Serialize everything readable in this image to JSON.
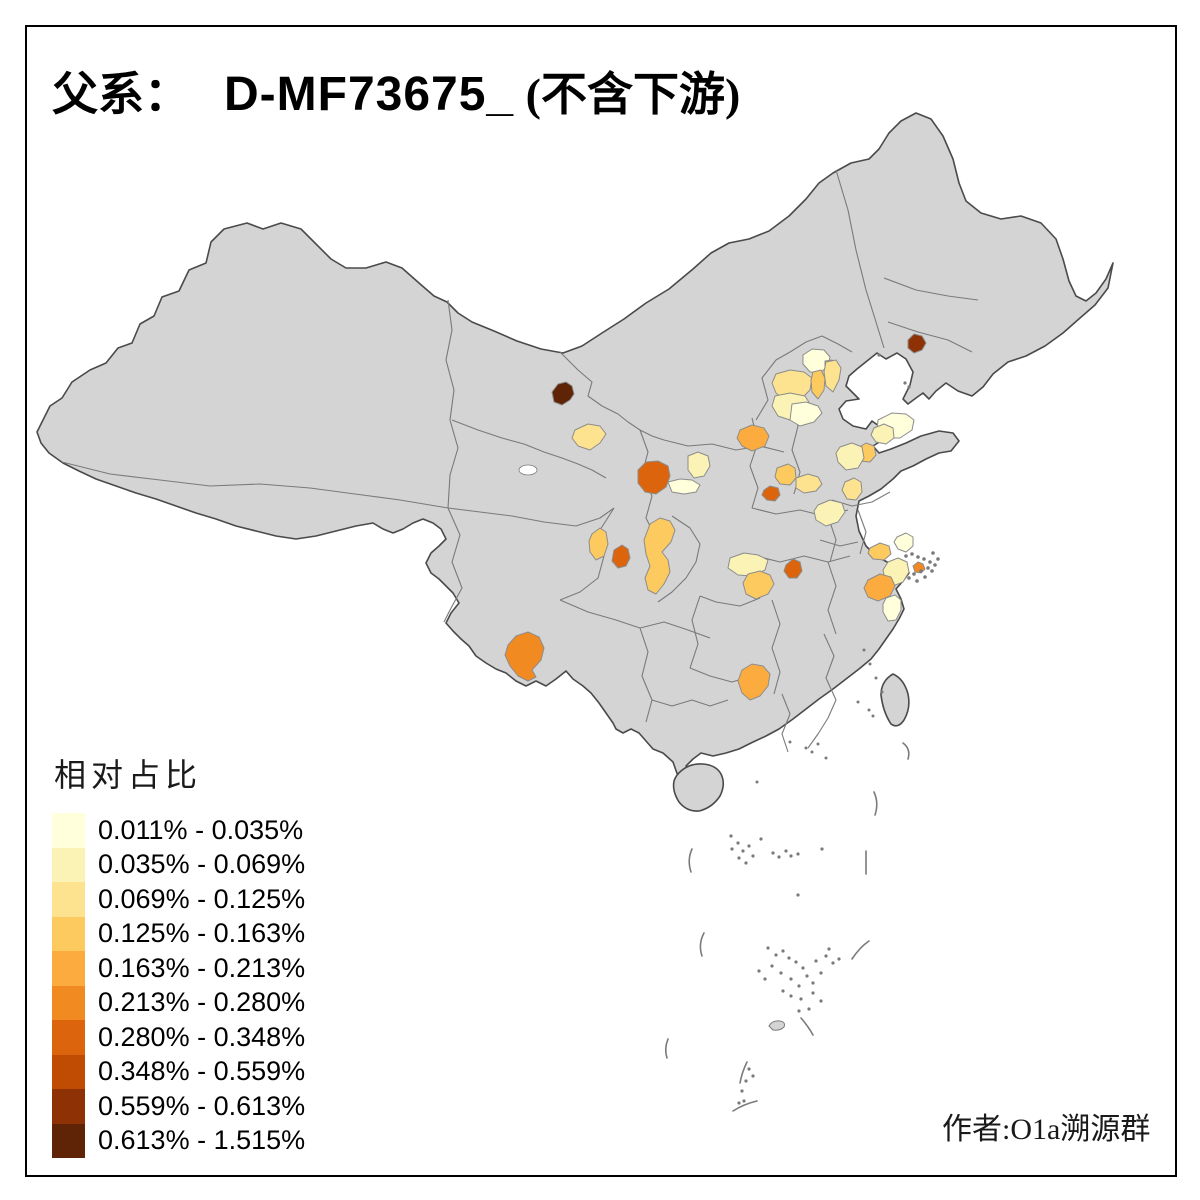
{
  "title": {
    "prefix": "父系：",
    "haplogroup": "D-MF73675_",
    "suffix": " (不含下游)"
  },
  "credit": "作者:O1a溯源群",
  "legend": {
    "title": "相对占比",
    "classes": [
      {
        "label": "0.011% - 0.035%",
        "color": "#FFFFDB"
      },
      {
        "label": "0.035% - 0.069%",
        "color": "#FBF2B6"
      },
      {
        "label": "0.069% - 0.125%",
        "color": "#FDE28F"
      },
      {
        "label": "0.125% - 0.163%",
        "color": "#FDCA5F"
      },
      {
        "label": "0.163% - 0.213%",
        "color": "#FCAC3E"
      },
      {
        "label": "0.213% - 0.280%",
        "color": "#F28A22"
      },
      {
        "label": "0.280% - 0.348%",
        "color": "#DC640D"
      },
      {
        "label": "0.348% - 0.559%",
        "color": "#C04B03"
      },
      {
        "label": "0.559% - 0.613%",
        "color": "#8E3104"
      },
      {
        "label": "0.613% - 1.515%",
        "color": "#5F2406"
      }
    ]
  },
  "map": {
    "colors": {
      "land": "#D4D4D4",
      "outline": "#4A4A4A",
      "province_border": "#7A7A7A",
      "region_border": "#8C8C8C",
      "sea": "#FFFFFF"
    },
    "region_classes": {
      "gansu_hexi": 10,
      "liaoning_c": 9,
      "tianshui": 7,
      "chengdu": 7,
      "wuhan": 7,
      "yuncheng": 7,
      "yunnan_dali": 6,
      "zhoushan": 6,
      "shaanxi_n": 5,
      "hunan_s": 5,
      "jinhua": 5,
      "nanchong": 4,
      "mianyang": 4,
      "hubei_sw": 4,
      "shanxi_se": 4,
      "beijing_e": 4,
      "langfang": 4,
      "qingdao": 4,
      "huzhou": 4,
      "lanzhou": 3,
      "hebei_w": 3,
      "tianjin": 3,
      "anyang": 3,
      "linyi": 3,
      "hebei_s": 2,
      "jinan": 2,
      "weifang": 2,
      "xuzhou": 2,
      "xiangyang": 2,
      "pingliang": 2,
      "hangzhou": 2,
      "beijing": 1,
      "gansu_e_pale": 1,
      "hebei_se": 1,
      "yantai": 1,
      "jiaxing": 1,
      "taizhou_zj": 1
    }
  },
  "chart_data": {
    "type": "choropleth",
    "title": "父系： D-MF73675_ (不含下游)",
    "legend_title": "相对占比",
    "legend_position": "bottom-left",
    "bins": [
      "0.011% - 0.035%",
      "0.035% - 0.069%",
      "0.069% - 0.125%",
      "0.125% - 0.163%",
      "0.163% - 0.213%",
      "0.213% - 0.280%",
      "0.280% - 0.348%",
      "0.348% - 0.559%",
      "0.559% - 0.613%",
      "0.613% - 1.515%"
    ],
    "regions": [
      {
        "area": "Hexi corridor, NW Gansu",
        "bin": "0.613% - 1.515%"
      },
      {
        "area": "Central Liaoning (coastal)",
        "bin": "0.559% - 0.613%"
      },
      {
        "area": "SE Gansu / W Shaanxi (Tianshui-Baoji)",
        "bin": "0.280% - 0.348%"
      },
      {
        "area": "Chengdu, Sichuan",
        "bin": "0.280% - 0.348%"
      },
      {
        "area": "E Hubei (Wuhan)",
        "bin": "0.280% - 0.348%"
      },
      {
        "area": "SW Shanxi (Yuncheng)",
        "bin": "0.280% - 0.348%"
      },
      {
        "area": "W Yunnan (Dali)",
        "bin": "0.213% - 0.280%"
      },
      {
        "area": "Zhoushan-Ningbo coast, Zhejiang",
        "bin": "0.213% - 0.280%"
      },
      {
        "area": "N Shaanxi / SW Inner Mongolia",
        "bin": "0.163% - 0.213%"
      },
      {
        "area": "S Hunan / NE Guangxi",
        "bin": "0.163% - 0.213%"
      },
      {
        "area": "C Zhejiang (Jinhua)",
        "bin": "0.163% - 0.213%"
      },
      {
        "area": "NE Sichuan (Nanchong-Guang'an)",
        "bin": "0.125% - 0.163%"
      },
      {
        "area": "N Sichuan strip (Mianyang)",
        "bin": "0.125% - 0.163%"
      },
      {
        "area": "SW Hubei (Jingzhou-Yichang)",
        "bin": "0.125% - 0.163%"
      },
      {
        "area": "SE Shanxi",
        "bin": "0.125% - 0.163%"
      },
      {
        "area": "E Beijing district",
        "bin": "0.125% - 0.163%"
      },
      {
        "area": "C Hebei strip (Langfang)",
        "bin": "0.125% - 0.163%"
      },
      {
        "area": "Qingdao, Shandong",
        "bin": "0.125% - 0.163%"
      },
      {
        "area": "N Zhejiang (Huzhou)",
        "bin": "0.125% - 0.163%"
      },
      {
        "area": "C Gansu (Lanzhou)",
        "bin": "0.069% - 0.125%"
      },
      {
        "area": "W Hebei",
        "bin": "0.069% - 0.125%"
      },
      {
        "area": "Tianjin",
        "bin": "0.069% - 0.125%"
      },
      {
        "area": "N Henan (Anyang)",
        "bin": "0.069% - 0.125%"
      },
      {
        "area": "S Shandong (Linyi)",
        "bin": "0.069% - 0.125%"
      },
      {
        "area": "S Hebei",
        "bin": "0.035% - 0.069%"
      },
      {
        "area": "C Shandong (Jinan-Tai'an)",
        "bin": "0.035% - 0.069%"
      },
      {
        "area": "E Shandong (Weifang)",
        "bin": "0.035% - 0.069%"
      },
      {
        "area": "N Jiangsu (Xuzhou area)",
        "bin": "0.035% - 0.069%"
      },
      {
        "area": "NW Hubei (Xiangyang)",
        "bin": "0.035% - 0.069%"
      },
      {
        "area": "NE Gansu (Pingliang)",
        "bin": "0.035% - 0.069%"
      },
      {
        "area": "N Zhejiang (Hangzhou-Shaoxing)",
        "bin": "0.035% - 0.069%"
      },
      {
        "area": "Beijing",
        "bin": "0.011% - 0.035%"
      },
      {
        "area": "E Gansu pale strip (Qingyang)",
        "bin": "0.011% - 0.035%"
      },
      {
        "area": "SE Hebei",
        "bin": "0.011% - 0.035%"
      },
      {
        "area": "Yantai, Shandong",
        "bin": "0.011% - 0.035%"
      },
      {
        "area": "NE Zhejiang (Jiaxing)",
        "bin": "0.011% - 0.035%"
      },
      {
        "area": "E Zhejiang (Taizhou)",
        "bin": "0.011% - 0.035%"
      }
    ]
  }
}
